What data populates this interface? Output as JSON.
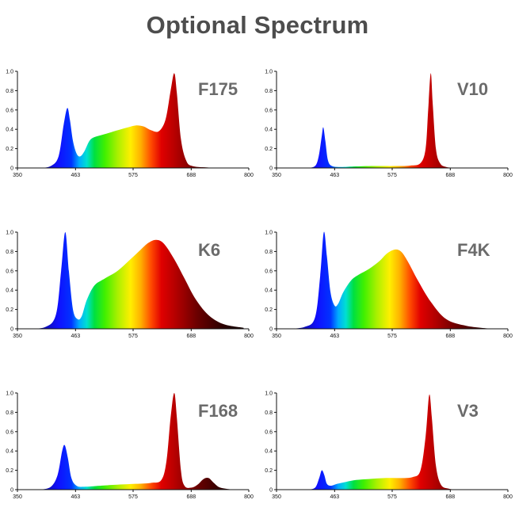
{
  "header": {
    "title": "Optional Spectrum"
  },
  "spectrum_colors": {
    "stops": [
      [
        380,
        "#0a0a6e"
      ],
      [
        430,
        "#1010ff"
      ],
      [
        455,
        "#0033ff"
      ],
      [
        470,
        "#00aaff"
      ],
      [
        485,
        "#00e0d0"
      ],
      [
        500,
        "#00e040"
      ],
      [
        520,
        "#40f000"
      ],
      [
        545,
        "#aaf000"
      ],
      [
        570,
        "#ffef00"
      ],
      [
        590,
        "#ffb000"
      ],
      [
        610,
        "#ff4a00"
      ],
      [
        630,
        "#e00000"
      ],
      [
        660,
        "#b00000"
      ],
      [
        700,
        "#6a0000"
      ],
      [
        750,
        "#2a0000"
      ],
      [
        800,
        "#0a0000"
      ]
    ]
  },
  "chart_data": [
    {
      "type": "area",
      "name": "F175",
      "xlim": [
        350,
        800
      ],
      "ylim": [
        0,
        1.0
      ],
      "xticks": [
        "350",
        "463",
        "575",
        "688",
        "800"
      ],
      "yticks": [
        "0",
        "0.2",
        "0.4",
        "0.6",
        "0.8",
        "1.0"
      ],
      "points": [
        [
          395,
          0
        ],
        [
          415,
          0.02
        ],
        [
          430,
          0.12
        ],
        [
          440,
          0.45
        ],
        [
          447,
          0.62
        ],
        [
          452,
          0.5
        ],
        [
          458,
          0.28
        ],
        [
          465,
          0.15
        ],
        [
          472,
          0.12
        ],
        [
          480,
          0.17
        ],
        [
          490,
          0.28
        ],
        [
          500,
          0.32
        ],
        [
          520,
          0.35
        ],
        [
          545,
          0.39
        ],
        [
          565,
          0.42
        ],
        [
          580,
          0.44
        ],
        [
          595,
          0.43
        ],
        [
          610,
          0.39
        ],
        [
          625,
          0.38
        ],
        [
          638,
          0.5
        ],
        [
          648,
          0.8
        ],
        [
          655,
          0.98
        ],
        [
          660,
          0.78
        ],
        [
          668,
          0.3
        ],
        [
          678,
          0.08
        ],
        [
          690,
          0.02
        ],
        [
          720,
          0.005
        ],
        [
          760,
          0
        ]
      ]
    },
    {
      "type": "area",
      "name": "V10",
      "xlim": [
        350,
        800
      ],
      "ylim": [
        0,
        1.0
      ],
      "xticks": [
        "350",
        "463",
        "575",
        "688",
        "800"
      ],
      "yticks": [
        "0",
        "0.2",
        "0.4",
        "0.6",
        "0.8",
        "1.0"
      ],
      "points": [
        [
          410,
          0
        ],
        [
          425,
          0.02
        ],
        [
          432,
          0.12
        ],
        [
          438,
          0.33
        ],
        [
          441,
          0.42
        ],
        [
          445,
          0.28
        ],
        [
          450,
          0.08
        ],
        [
          458,
          0.02
        ],
        [
          475,
          0.01
        ],
        [
          500,
          0.015
        ],
        [
          540,
          0.02
        ],
        [
          580,
          0.02
        ],
        [
          610,
          0.025
        ],
        [
          630,
          0.05
        ],
        [
          640,
          0.2
        ],
        [
          645,
          0.6
        ],
        [
          650,
          0.98
        ],
        [
          654,
          0.65
        ],
        [
          660,
          0.2
        ],
        [
          668,
          0.05
        ],
        [
          680,
          0.01
        ],
        [
          700,
          0
        ]
      ]
    },
    {
      "type": "area",
      "name": "K6",
      "xlim": [
        350,
        800
      ],
      "ylim": [
        0,
        1.0
      ],
      "xticks": [
        "350",
        "463",
        "575",
        "688",
        "800"
      ],
      "yticks": [
        "0",
        "0.2",
        "0.4",
        "0.6",
        "0.8",
        "1.0"
      ],
      "points": [
        [
          370,
          0
        ],
        [
          405,
          0.02
        ],
        [
          425,
          0.15
        ],
        [
          435,
          0.6
        ],
        [
          443,
          1.0
        ],
        [
          450,
          0.6
        ],
        [
          458,
          0.2
        ],
        [
          467,
          0.1
        ],
        [
          475,
          0.13
        ],
        [
          485,
          0.3
        ],
        [
          500,
          0.45
        ],
        [
          520,
          0.52
        ],
        [
          545,
          0.6
        ],
        [
          570,
          0.72
        ],
        [
          590,
          0.82
        ],
        [
          605,
          0.89
        ],
        [
          620,
          0.92
        ],
        [
          635,
          0.88
        ],
        [
          655,
          0.72
        ],
        [
          675,
          0.52
        ],
        [
          695,
          0.32
        ],
        [
          720,
          0.15
        ],
        [
          750,
          0.05
        ],
        [
          790,
          0.01
        ]
      ]
    },
    {
      "type": "area",
      "name": "F4K",
      "xlim": [
        350,
        800
      ],
      "ylim": [
        0,
        1.0
      ],
      "xticks": [
        "350",
        "463",
        "575",
        "688",
        "800"
      ],
      "yticks": [
        "0",
        "0.2",
        "0.4",
        "0.6",
        "0.8",
        "1.0"
      ],
      "points": [
        [
          370,
          0
        ],
        [
          405,
          0.02
        ],
        [
          425,
          0.12
        ],
        [
          435,
          0.55
        ],
        [
          442,
          1.0
        ],
        [
          448,
          0.75
        ],
        [
          455,
          0.38
        ],
        [
          463,
          0.24
        ],
        [
          470,
          0.26
        ],
        [
          480,
          0.38
        ],
        [
          495,
          0.5
        ],
        [
          510,
          0.56
        ],
        [
          530,
          0.62
        ],
        [
          550,
          0.7
        ],
        [
          565,
          0.78
        ],
        [
          580,
          0.82
        ],
        [
          592,
          0.8
        ],
        [
          605,
          0.7
        ],
        [
          625,
          0.5
        ],
        [
          650,
          0.28
        ],
        [
          680,
          0.1
        ],
        [
          720,
          0.03
        ],
        [
          770,
          0
        ]
      ]
    },
    {
      "type": "area",
      "name": "F168",
      "xlim": [
        350,
        800
      ],
      "ylim": [
        0,
        1.0
      ],
      "xticks": [
        "350",
        "463",
        "575",
        "688",
        "800"
      ],
      "yticks": [
        "0",
        "0.2",
        "0.4",
        "0.6",
        "0.8",
        "1.0"
      ],
      "points": [
        [
          395,
          0
        ],
        [
          415,
          0.03
        ],
        [
          428,
          0.15
        ],
        [
          437,
          0.4
        ],
        [
          442,
          0.46
        ],
        [
          448,
          0.33
        ],
        [
          455,
          0.12
        ],
        [
          465,
          0.04
        ],
        [
          480,
          0.03
        ],
        [
          510,
          0.04
        ],
        [
          540,
          0.05
        ],
        [
          580,
          0.06
        ],
        [
          610,
          0.07
        ],
        [
          630,
          0.1
        ],
        [
          640,
          0.3
        ],
        [
          648,
          0.75
        ],
        [
          655,
          1.0
        ],
        [
          660,
          0.75
        ],
        [
          668,
          0.2
        ],
        [
          675,
          0.04
        ],
        [
          688,
          0.02
        ],
        [
          700,
          0.05
        ],
        [
          712,
          0.11
        ],
        [
          722,
          0.12
        ],
        [
          732,
          0.07
        ],
        [
          745,
          0.02
        ],
        [
          770,
          0
        ]
      ]
    },
    {
      "type": "area",
      "name": "V3",
      "xlim": [
        350,
        800
      ],
      "ylim": [
        0,
        1.0
      ],
      "xticks": [
        "350",
        "463",
        "575",
        "688",
        "800"
      ],
      "yticks": [
        "0",
        "0.2",
        "0.4",
        "0.6",
        "0.8",
        "1.0"
      ],
      "points": [
        [
          410,
          0
        ],
        [
          425,
          0.02
        ],
        [
          433,
          0.12
        ],
        [
          438,
          0.2
        ],
        [
          443,
          0.15
        ],
        [
          448,
          0.06
        ],
        [
          456,
          0.04
        ],
        [
          468,
          0.06
        ],
        [
          485,
          0.08
        ],
        [
          505,
          0.1
        ],
        [
          530,
          0.11
        ],
        [
          560,
          0.12
        ],
        [
          590,
          0.12
        ],
        [
          615,
          0.13
        ],
        [
          630,
          0.2
        ],
        [
          640,
          0.55
        ],
        [
          647,
          0.98
        ],
        [
          652,
          0.75
        ],
        [
          660,
          0.25
        ],
        [
          670,
          0.05
        ],
        [
          685,
          0.01
        ],
        [
          700,
          0
        ]
      ]
    }
  ]
}
